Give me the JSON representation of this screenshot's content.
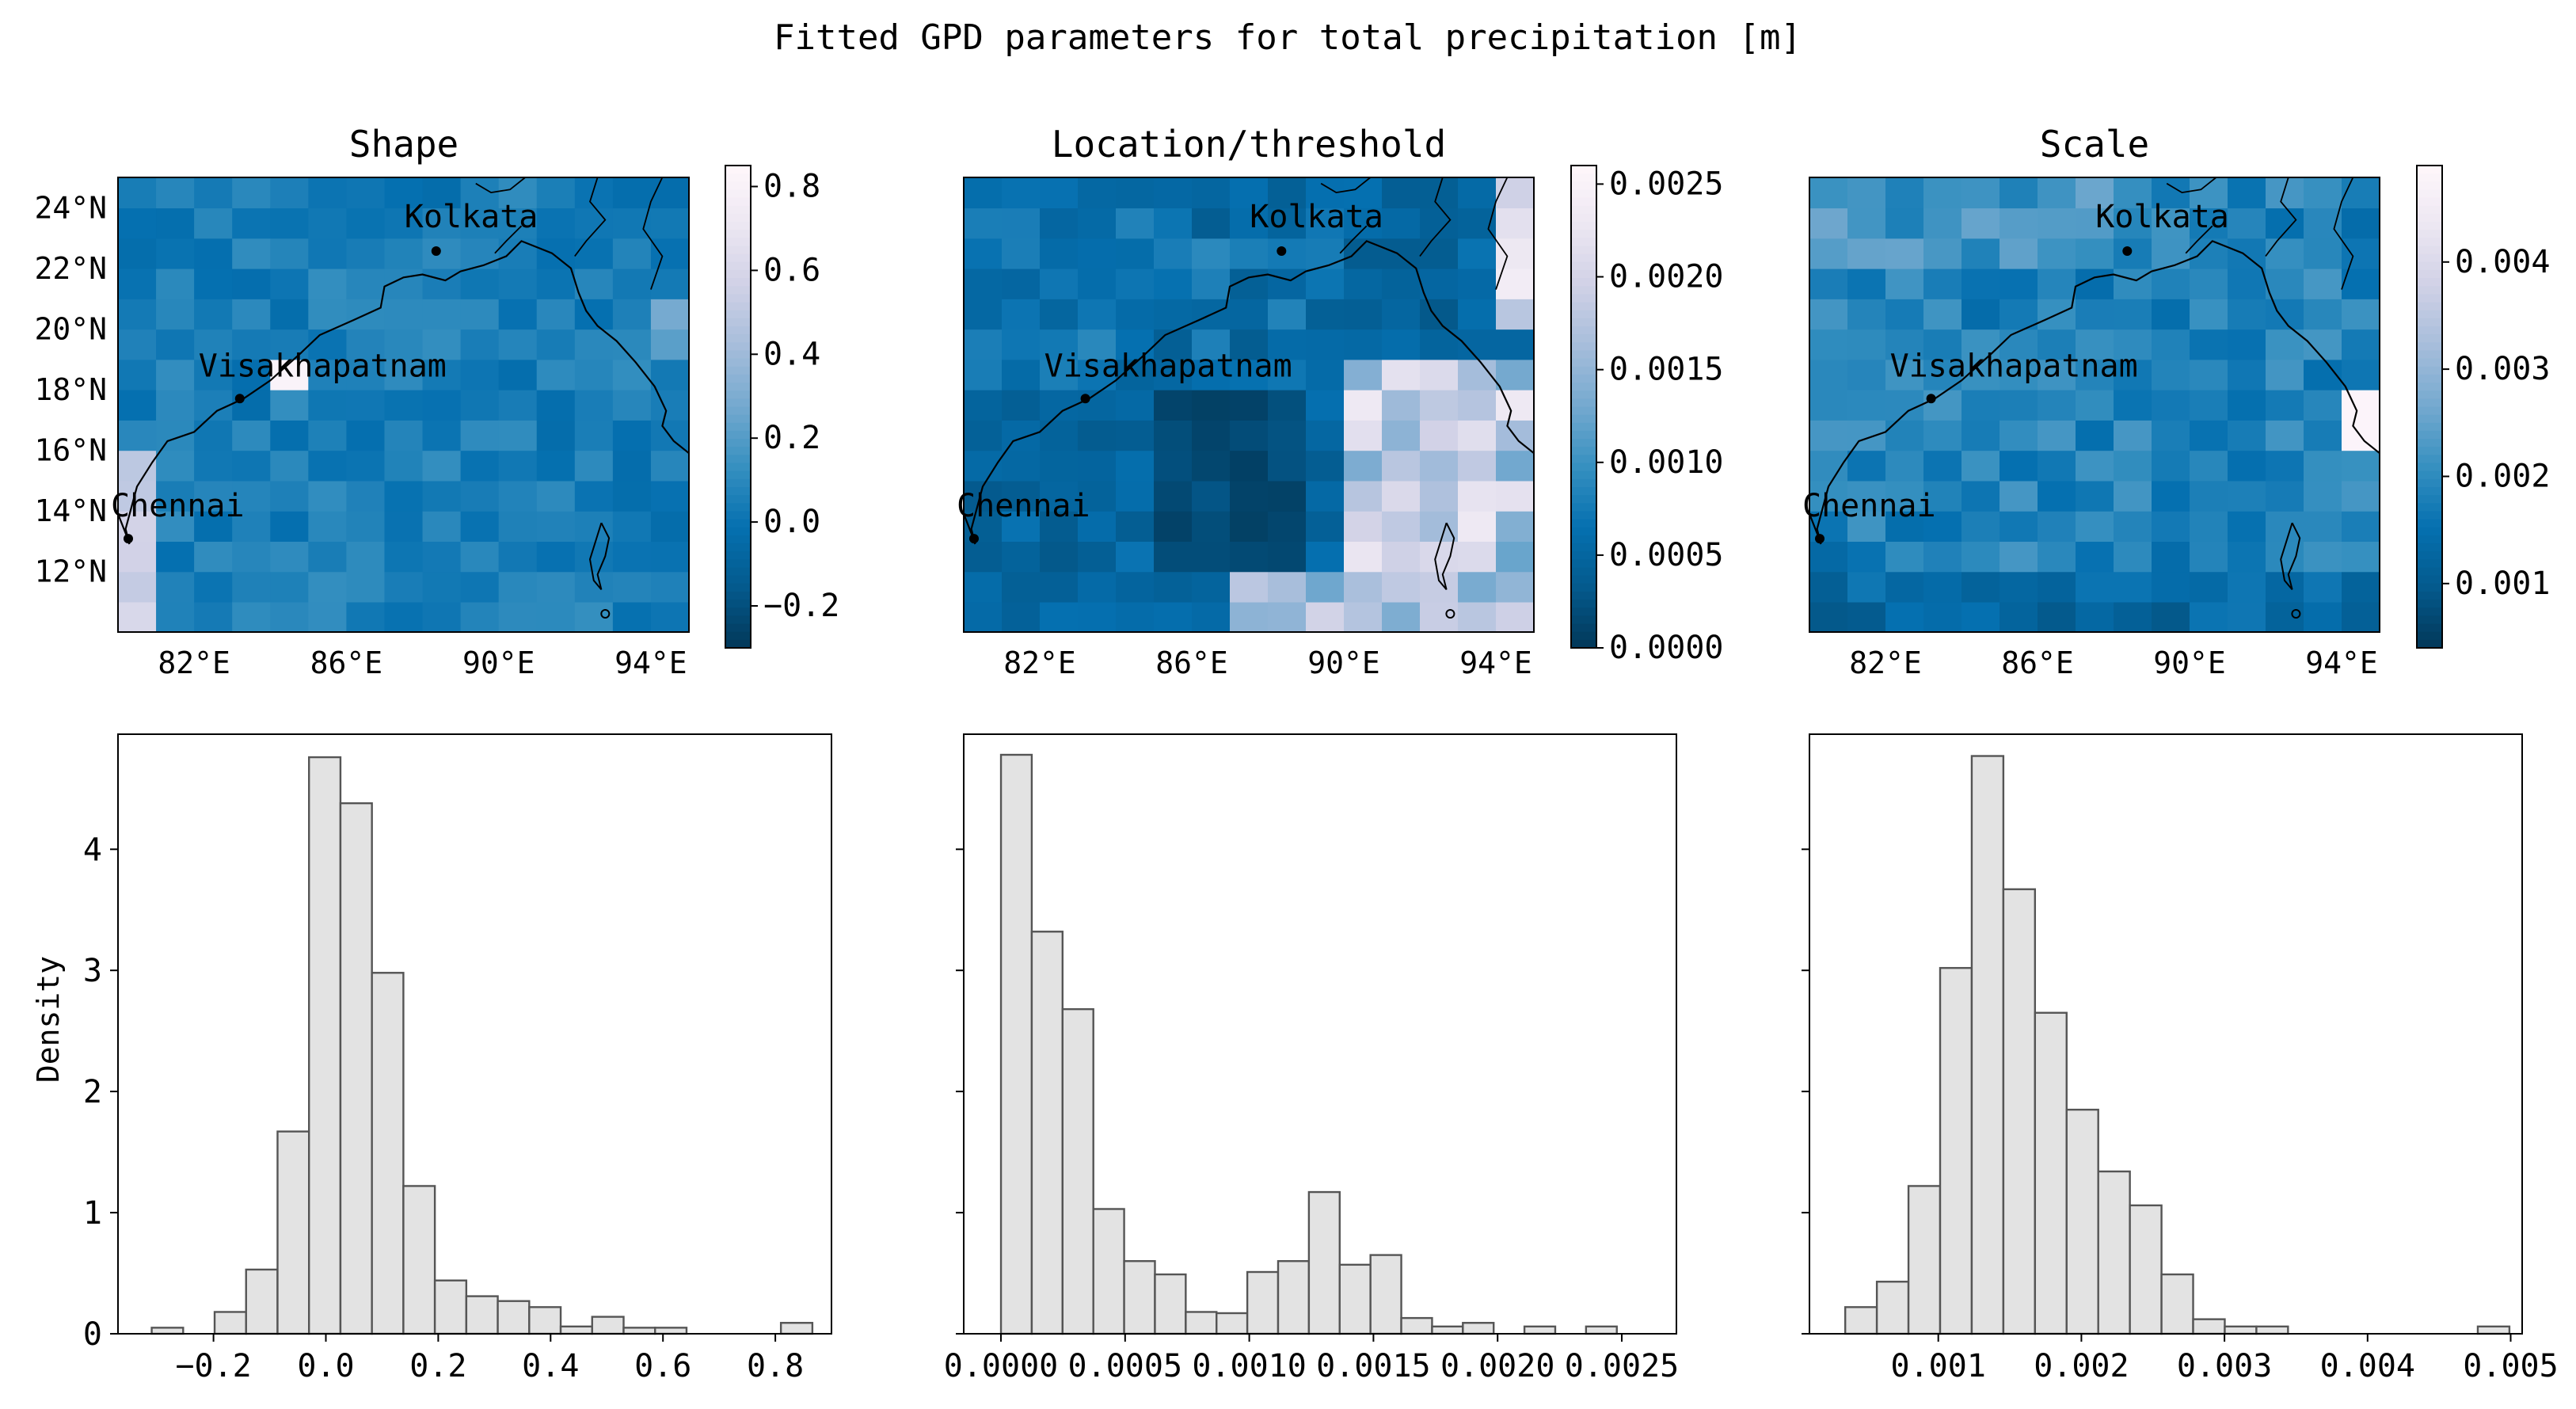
{
  "suptitle": "Fitted GPD parameters for total precipitation [m]",
  "colors": {
    "cmap": [
      "#023858",
      "#045a8d",
      "#0570b0",
      "#3690c0",
      "#74a9cf",
      "#a6bddb",
      "#d0d1e6",
      "#ece7f2",
      "#fff7fb"
    ],
    "hist_fill": "#e3e3e3",
    "hist_edge": "#555555"
  },
  "maps": {
    "lon_ticks": [
      "82°E",
      "86°E",
      "90°E",
      "94°E"
    ],
    "lat_ticks": [
      "24°N",
      "22°N",
      "20°N",
      "18°N",
      "16°N",
      "14°N",
      "12°N"
    ],
    "cities": [
      "Kolkata",
      "Visakhapatnam",
      "Chennai"
    ]
  },
  "chart_data": [
    {
      "type": "heatmap",
      "title": "Shape",
      "colorbar_range": [
        -0.3,
        0.85
      ],
      "colorbar_ticks": [
        "0.8",
        "0.6",
        "0.4",
        "0.2",
        "0.0",
        "−0.2"
      ],
      "colorbar_values": [
        0.8,
        0.6,
        0.4,
        0.2,
        0.0,
        -0.2
      ]
    },
    {
      "type": "heatmap",
      "title": "Location/threshold",
      "colorbar_range": [
        0.0,
        0.0026
      ],
      "colorbar_ticks": [
        "0.0025",
        "0.0020",
        "0.0015",
        "0.0010",
        "0.0005",
        "0.0000"
      ],
      "colorbar_values": [
        0.0025,
        0.002,
        0.0015,
        0.001,
        0.0005,
        0.0
      ]
    },
    {
      "type": "heatmap",
      "title": "Scale",
      "colorbar_range": [
        0.0004,
        0.0049
      ],
      "colorbar_ticks": [
        "0.004",
        "0.003",
        "0.002",
        "0.001"
      ],
      "colorbar_values": [
        0.004,
        0.003,
        0.002,
        0.001
      ]
    },
    {
      "type": "bar",
      "ylabel": "Density",
      "xlim": [
        -0.37,
        0.9
      ],
      "ylim": [
        0,
        4.95
      ],
      "x_ticks": [
        "−0.2",
        "0.0",
        "0.2",
        "0.4",
        "0.6",
        "0.8"
      ],
      "x_tick_values": [
        -0.2,
        0.0,
        0.2,
        0.4,
        0.6,
        0.8
      ],
      "y_ticks": [
        "0",
        "1",
        "2",
        "3",
        "4"
      ],
      "y_tick_values": [
        0,
        1,
        2,
        3,
        4
      ],
      "bin_edges": [
        -0.31,
        -0.254,
        -0.198,
        -0.142,
        -0.086,
        -0.03,
        0.026,
        0.082,
        0.138,
        0.194,
        0.25,
        0.306,
        0.362,
        0.418,
        0.474,
        0.53,
        0.586,
        0.642,
        0.698,
        0.754,
        0.81,
        0.866
      ],
      "values": [
        0.05,
        0.0,
        0.18,
        0.53,
        1.67,
        4.76,
        4.38,
        2.98,
        1.22,
        0.44,
        0.31,
        0.27,
        0.22,
        0.06,
        0.14,
        0.05,
        0.05,
        0.0,
        0.0,
        0.0,
        0.09
      ]
    },
    {
      "type": "bar",
      "xlim": [
        -0.00015,
        0.00272
      ],
      "ylim": [
        0,
        4.95
      ],
      "x_ticks": [
        "0.0000",
        "0.0005",
        "0.0010",
        "0.0015",
        "0.0020",
        "0.0025"
      ],
      "x_tick_values": [
        0.0,
        0.0005,
        0.001,
        0.0015,
        0.002,
        0.0025
      ],
      "bin_edges": [
        0.0,
        0.000124,
        0.000248,
        0.000372,
        0.000496,
        0.00062,
        0.000744,
        0.000868,
        0.000992,
        0.001116,
        0.00124,
        0.001364,
        0.001488,
        0.001612,
        0.001736,
        0.00186,
        0.001984,
        0.002108,
        0.002232,
        0.002356,
        0.00248,
        0.002604
      ],
      "values": [
        4.78,
        3.32,
        2.68,
        1.03,
        0.6,
        0.49,
        0.18,
        0.17,
        0.51,
        0.6,
        1.17,
        0.57,
        0.65,
        0.13,
        0.06,
        0.09,
        0.0,
        0.06,
        0.0,
        0.06,
        0.0
      ]
    },
    {
      "type": "bar",
      "xlim": [
        0.0001,
        0.00508
      ],
      "ylim": [
        0,
        4.95
      ],
      "x_ticks": [
        "0.001",
        "0.002",
        "0.003",
        "0.004",
        "0.005"
      ],
      "x_tick_values": [
        0.001,
        0.002,
        0.003,
        0.004,
        0.005
      ],
      "bin_edges": [
        0.00035,
        0.000571,
        0.000792,
        0.001013,
        0.001234,
        0.001455,
        0.001676,
        0.001897,
        0.002118,
        0.002339,
        0.00256,
        0.002781,
        0.003002,
        0.003223,
        0.003444,
        0.003665,
        0.003886,
        0.004107,
        0.004328,
        0.004549,
        0.00477,
        0.004991
      ],
      "values": [
        0.22,
        0.43,
        1.22,
        3.02,
        4.77,
        3.67,
        2.65,
        1.85,
        1.34,
        1.06,
        0.49,
        0.12,
        0.06,
        0.06,
        0.0,
        0.0,
        0.0,
        0.0,
        0.0,
        0.0,
        0.06
      ]
    }
  ]
}
